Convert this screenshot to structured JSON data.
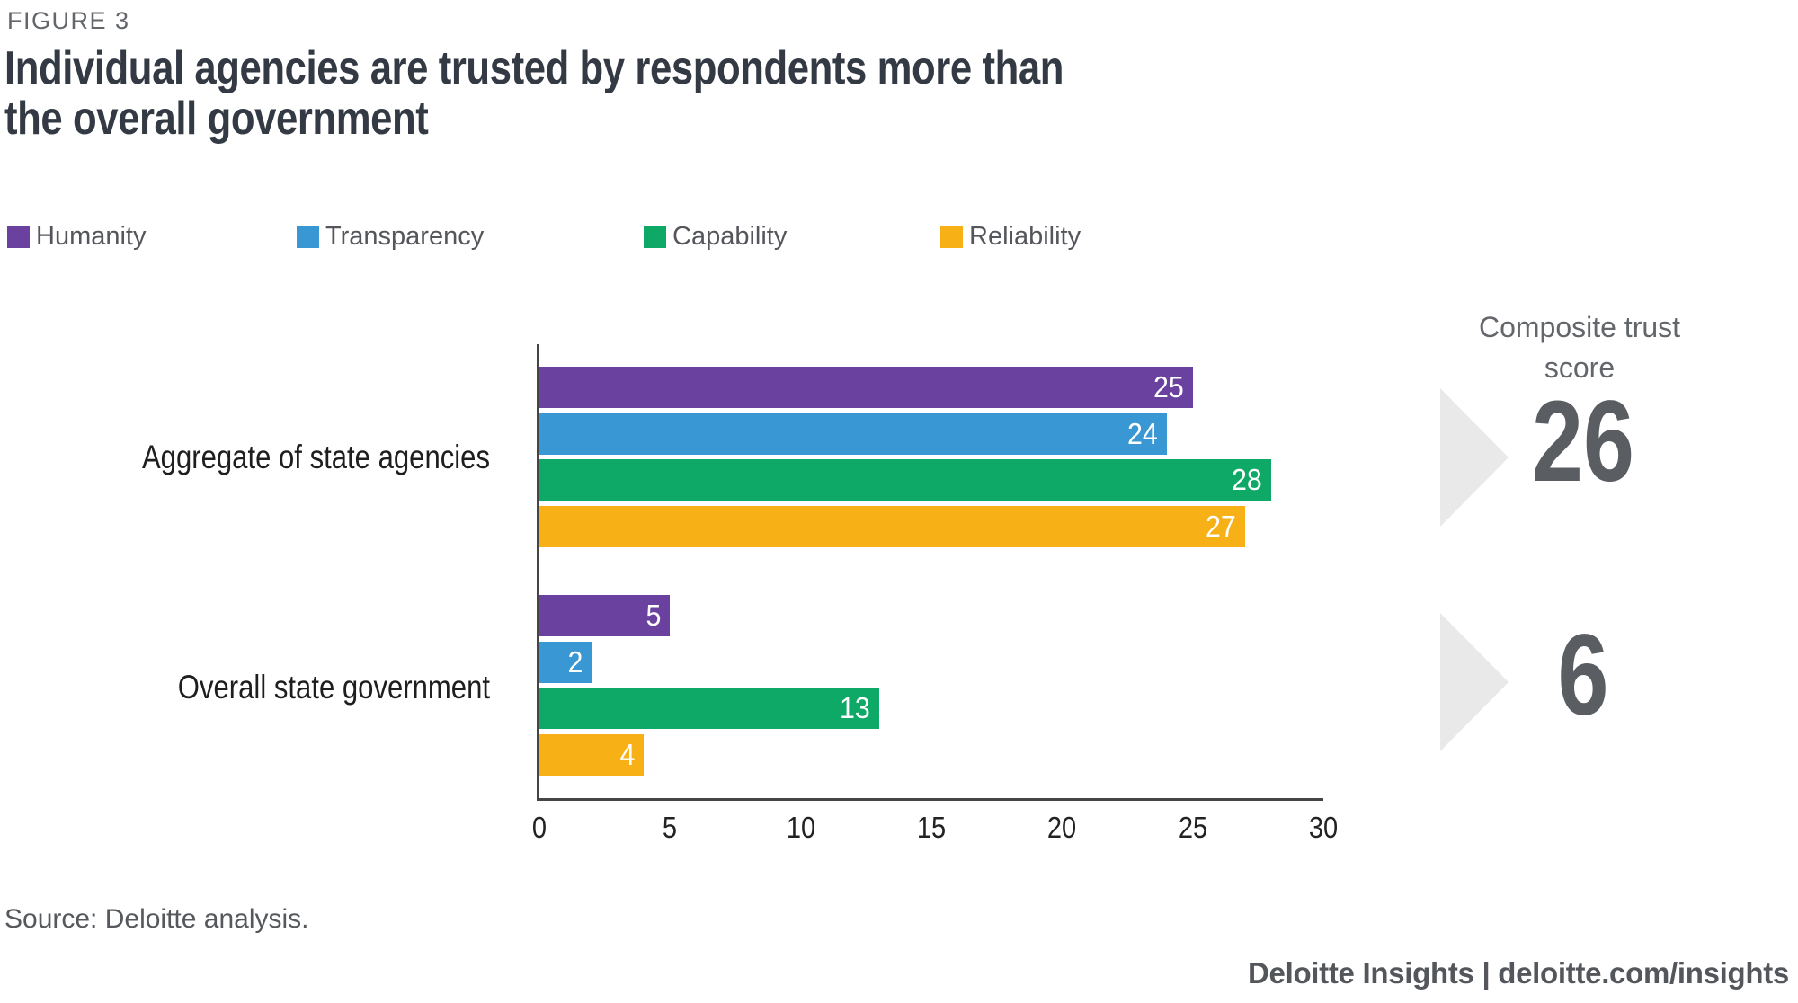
{
  "figure_label": "FIGURE 3",
  "title": {
    "line1": "Individual agencies are trusted by respondents more than",
    "line2": "the overall government"
  },
  "chart_data": {
    "type": "bar",
    "orientation": "horizontal",
    "title": "Individual agencies are trusted by respondents more than the overall government",
    "categories": [
      "Aggregate of state agencies",
      "Overall state government"
    ],
    "series": [
      {
        "name": "Humanity",
        "color": "#6a419e",
        "values": [
          25,
          5
        ]
      },
      {
        "name": "Transparency",
        "color": "#3997d4",
        "values": [
          24,
          2
        ]
      },
      {
        "name": "Capability",
        "color": "#0ea966",
        "values": [
          28,
          13
        ]
      },
      {
        "name": "Reliability",
        "color": "#f7b016",
        "values": [
          27,
          4
        ]
      }
    ],
    "xlim": [
      0,
      30
    ],
    "x_ticks": [
      0,
      5,
      10,
      15,
      20,
      25,
      30
    ],
    "grid": false,
    "legend_position": "top",
    "value_labels": true,
    "composite": {
      "label": "Composite trust score",
      "values": [
        26,
        6
      ],
      "arrow_color": "#e9e9ea",
      "number_color": "#5a5e63"
    }
  },
  "footer": {
    "source": "Source: Deloitte analysis.",
    "brand": "Deloitte Insights | deloitte.com/insights"
  }
}
